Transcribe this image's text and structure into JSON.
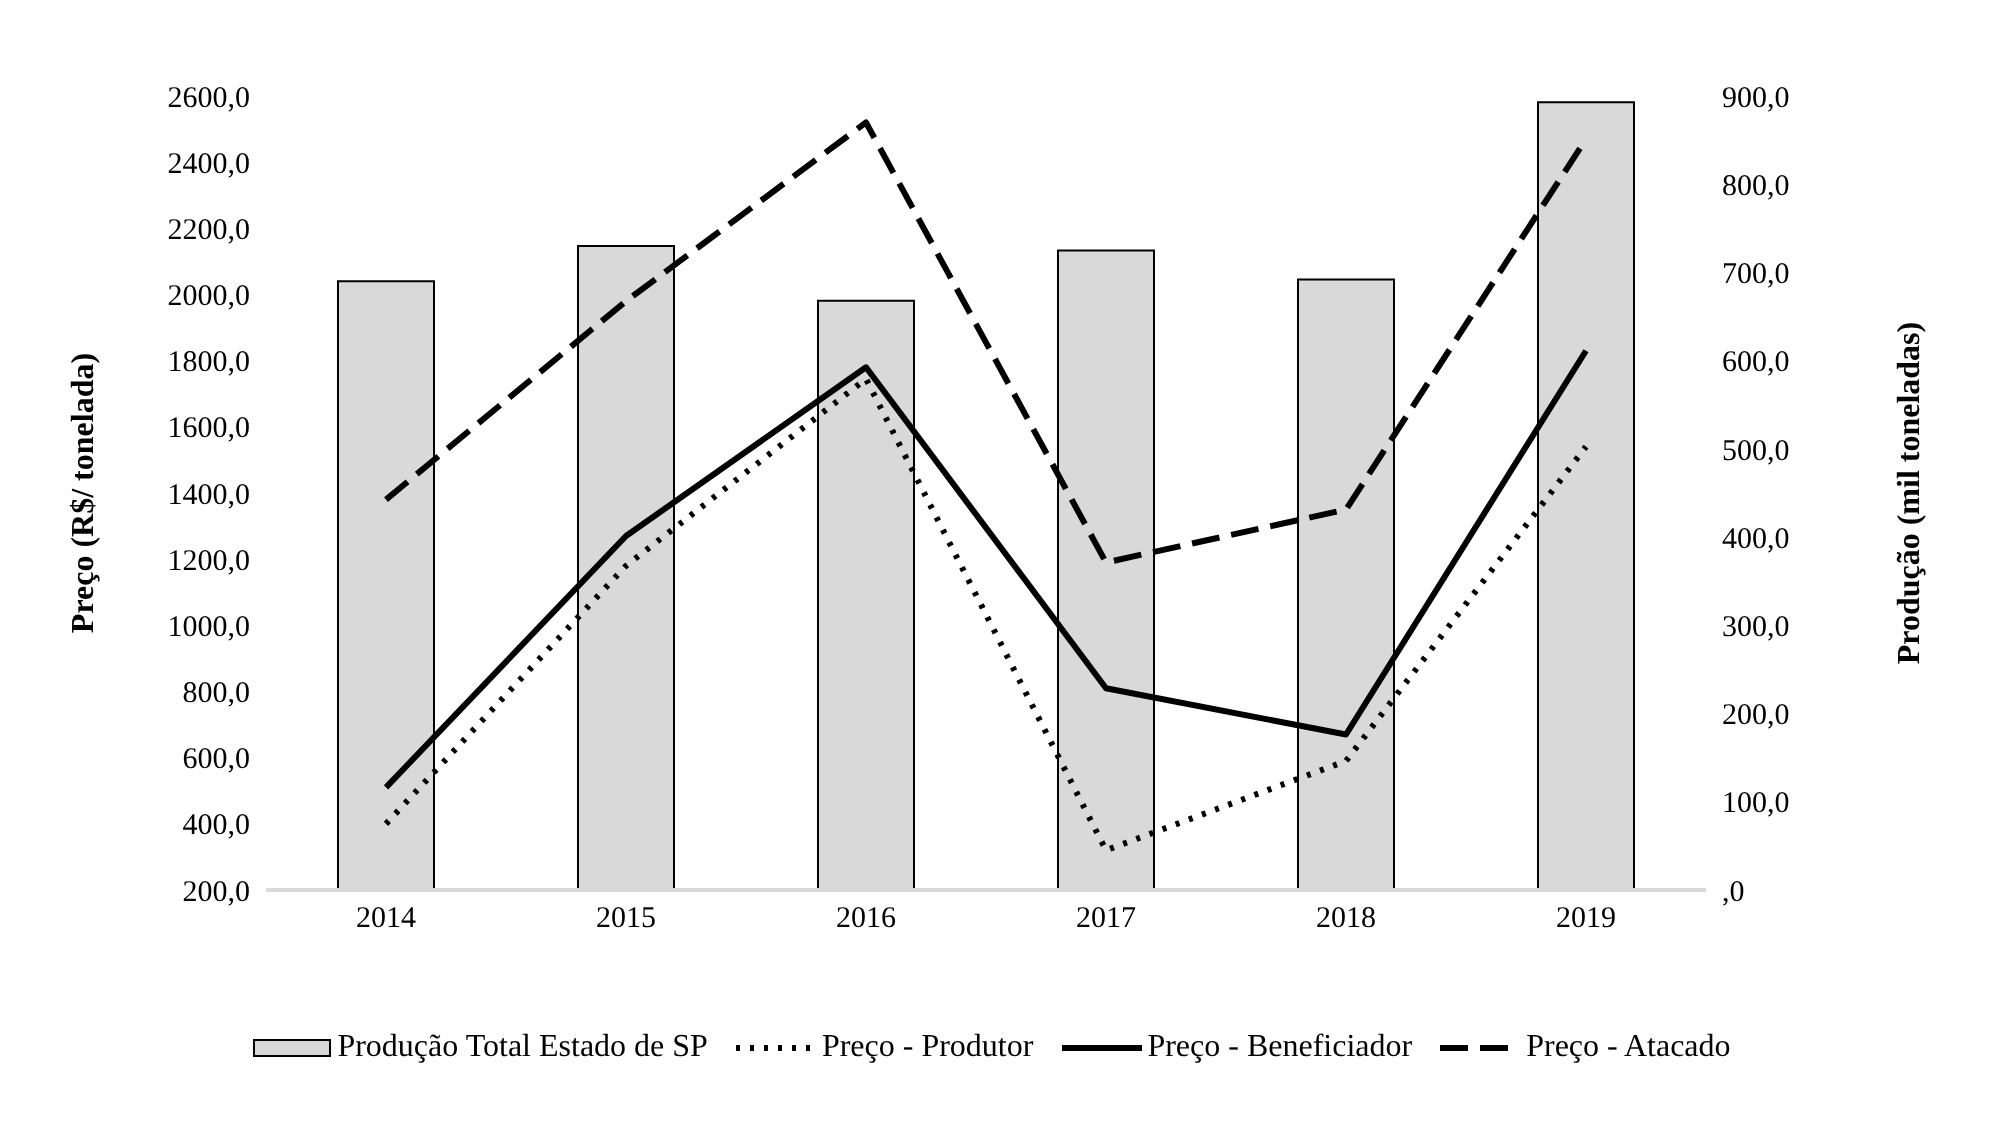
{
  "chart_data": {
    "type": "bar",
    "categories": [
      "2014",
      "2015",
      "2016",
      "2017",
      "2018",
      "2019"
    ],
    "ylabel": "Preço (R$/ tonelada)",
    "y2label": "Produção (mil toneladas)",
    "ylim": [
      200,
      2600
    ],
    "yticks": [
      {
        "value": 200,
        "label": "200,0"
      },
      {
        "value": 400,
        "label": "400,0"
      },
      {
        "value": 600,
        "label": "600,0"
      },
      {
        "value": 800,
        "label": "800,0"
      },
      {
        "value": 1000,
        "label": "1000,0"
      },
      {
        "value": 1200,
        "label": "1200,0"
      },
      {
        "value": 1400,
        "label": "1400,0"
      },
      {
        "value": 1600,
        "label": "1600,0"
      },
      {
        "value": 1800,
        "label": "1800,0"
      },
      {
        "value": 2000,
        "label": "2000,0"
      },
      {
        "value": 2200,
        "label": "2200,0"
      },
      {
        "value": 2400,
        "label": "2400,0"
      },
      {
        "value": 2600,
        "label": "2600,0"
      }
    ],
    "y2lim": [
      0,
      900
    ],
    "y2ticks": [
      {
        "value": 0,
        "label": ",0"
      },
      {
        "value": 100,
        "label": "100,0"
      },
      {
        "value": 200,
        "label": "200,0"
      },
      {
        "value": 300,
        "label": "300,0"
      },
      {
        "value": 400,
        "label": "400,0"
      },
      {
        "value": 500,
        "label": "500,0"
      },
      {
        "value": 600,
        "label": "600,0"
      },
      {
        "value": 700,
        "label": "700,0"
      },
      {
        "value": 800,
        "label": "800,0"
      },
      {
        "value": 900,
        "label": "900,0"
      }
    ],
    "series": [
      {
        "name": "Produção Total Estado de SP",
        "axis": "y2",
        "color": "#d9d9d9",
        "values": [
          690,
          730,
          668,
          725,
          692,
          893
        ]
      },
      {
        "name": "Preço - Produtor",
        "type": "line",
        "line_style": "dotted",
        "color": "#000000",
        "values": [
          400,
          1180,
          1745,
          320,
          590,
          1540
        ]
      },
      {
        "name": "Preço - Beneficiador",
        "type": "line",
        "line_style": "solid",
        "color": "#000000",
        "values": [
          510,
          1270,
          1780,
          810,
          670,
          1830
        ]
      },
      {
        "name": "Preço - Atacado",
        "type": "line",
        "line_style": "dashed",
        "color": "#000000",
        "values": [
          1380,
          1980,
          2520,
          1190,
          1350,
          2470
        ]
      }
    ],
    "grid": false,
    "legend": "bottom",
    "marker": "none"
  }
}
